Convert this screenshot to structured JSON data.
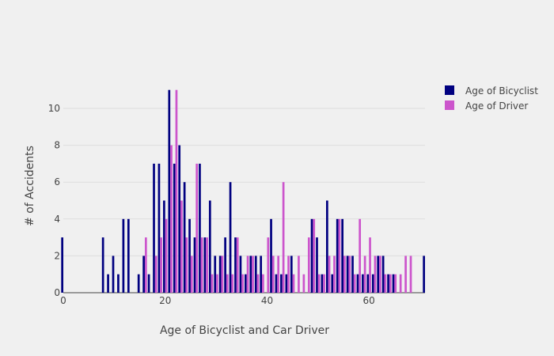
{
  "chart_data": {
    "type": "bar",
    "xlabel": "Age of Bicyclist and Car Driver",
    "ylabel": "# of Accidents",
    "xlim": [
      0,
      71
    ],
    "ylim": [
      0,
      11.5
    ],
    "x_ticks": [
      0,
      20,
      40,
      60
    ],
    "y_ticks": [
      0,
      2,
      4,
      6,
      8,
      10
    ],
    "grid": true,
    "legend_position": "top-right",
    "series": [
      {
        "name": "Age of Bicyclist",
        "color": "#000080",
        "points": [
          [
            0,
            3
          ],
          [
            8,
            3
          ],
          [
            9,
            1
          ],
          [
            10,
            2
          ],
          [
            11,
            1
          ],
          [
            12,
            4
          ],
          [
            13,
            4
          ],
          [
            15,
            1
          ],
          [
            16,
            2
          ],
          [
            17,
            1
          ],
          [
            18,
            7
          ],
          [
            19,
            7
          ],
          [
            20,
            5
          ],
          [
            21,
            11
          ],
          [
            22,
            7
          ],
          [
            23,
            8
          ],
          [
            24,
            6
          ],
          [
            25,
            4
          ],
          [
            26,
            3
          ],
          [
            27,
            7
          ],
          [
            28,
            3
          ],
          [
            29,
            5
          ],
          [
            30,
            2
          ],
          [
            31,
            2
          ],
          [
            32,
            3
          ],
          [
            33,
            6
          ],
          [
            34,
            3
          ],
          [
            35,
            2
          ],
          [
            36,
            1
          ],
          [
            37,
            2
          ],
          [
            38,
            2
          ],
          [
            39,
            2
          ],
          [
            41,
            4
          ],
          [
            42,
            1
          ],
          [
            43,
            1
          ],
          [
            44,
            1
          ],
          [
            45,
            2
          ],
          [
            49,
            4
          ],
          [
            50,
            3
          ],
          [
            51,
            1
          ],
          [
            52,
            5
          ],
          [
            53,
            1
          ],
          [
            54,
            4
          ],
          [
            55,
            4
          ],
          [
            56,
            2
          ],
          [
            57,
            2
          ],
          [
            58,
            1
          ],
          [
            59,
            1
          ],
          [
            60,
            1
          ],
          [
            61,
            1
          ],
          [
            62,
            2
          ],
          [
            63,
            2
          ],
          [
            64,
            1
          ],
          [
            65,
            1
          ],
          [
            71,
            2
          ]
        ]
      },
      {
        "name": "Age of Driver",
        "color": "#cc55cc",
        "points": [
          [
            16,
            3
          ],
          [
            18,
            2
          ],
          [
            19,
            3
          ],
          [
            20,
            4
          ],
          [
            21,
            8
          ],
          [
            22,
            11
          ],
          [
            23,
            5
          ],
          [
            24,
            3
          ],
          [
            25,
            2
          ],
          [
            26,
            7
          ],
          [
            27,
            3
          ],
          [
            28,
            3
          ],
          [
            29,
            1
          ],
          [
            30,
            1
          ],
          [
            31,
            2
          ],
          [
            32,
            1
          ],
          [
            33,
            1
          ],
          [
            34,
            3
          ],
          [
            35,
            1
          ],
          [
            36,
            2
          ],
          [
            37,
            2
          ],
          [
            38,
            1
          ],
          [
            39,
            1
          ],
          [
            40,
            3
          ],
          [
            41,
            2
          ],
          [
            42,
            2
          ],
          [
            43,
            6
          ],
          [
            44,
            2
          ],
          [
            45,
            1
          ],
          [
            46,
            2
          ],
          [
            47,
            1
          ],
          [
            48,
            3
          ],
          [
            49,
            4
          ],
          [
            50,
            1
          ],
          [
            51,
            1
          ],
          [
            52,
            2
          ],
          [
            53,
            2
          ],
          [
            54,
            4
          ],
          [
            55,
            2
          ],
          [
            56,
            2
          ],
          [
            57,
            1
          ],
          [
            58,
            4
          ],
          [
            59,
            2
          ],
          [
            60,
            3
          ],
          [
            61,
            2
          ],
          [
            62,
            2
          ],
          [
            63,
            1
          ],
          [
            64,
            1
          ],
          [
            65,
            1
          ],
          [
            66,
            1
          ],
          [
            67,
            2
          ],
          [
            68,
            2
          ]
        ]
      }
    ]
  }
}
